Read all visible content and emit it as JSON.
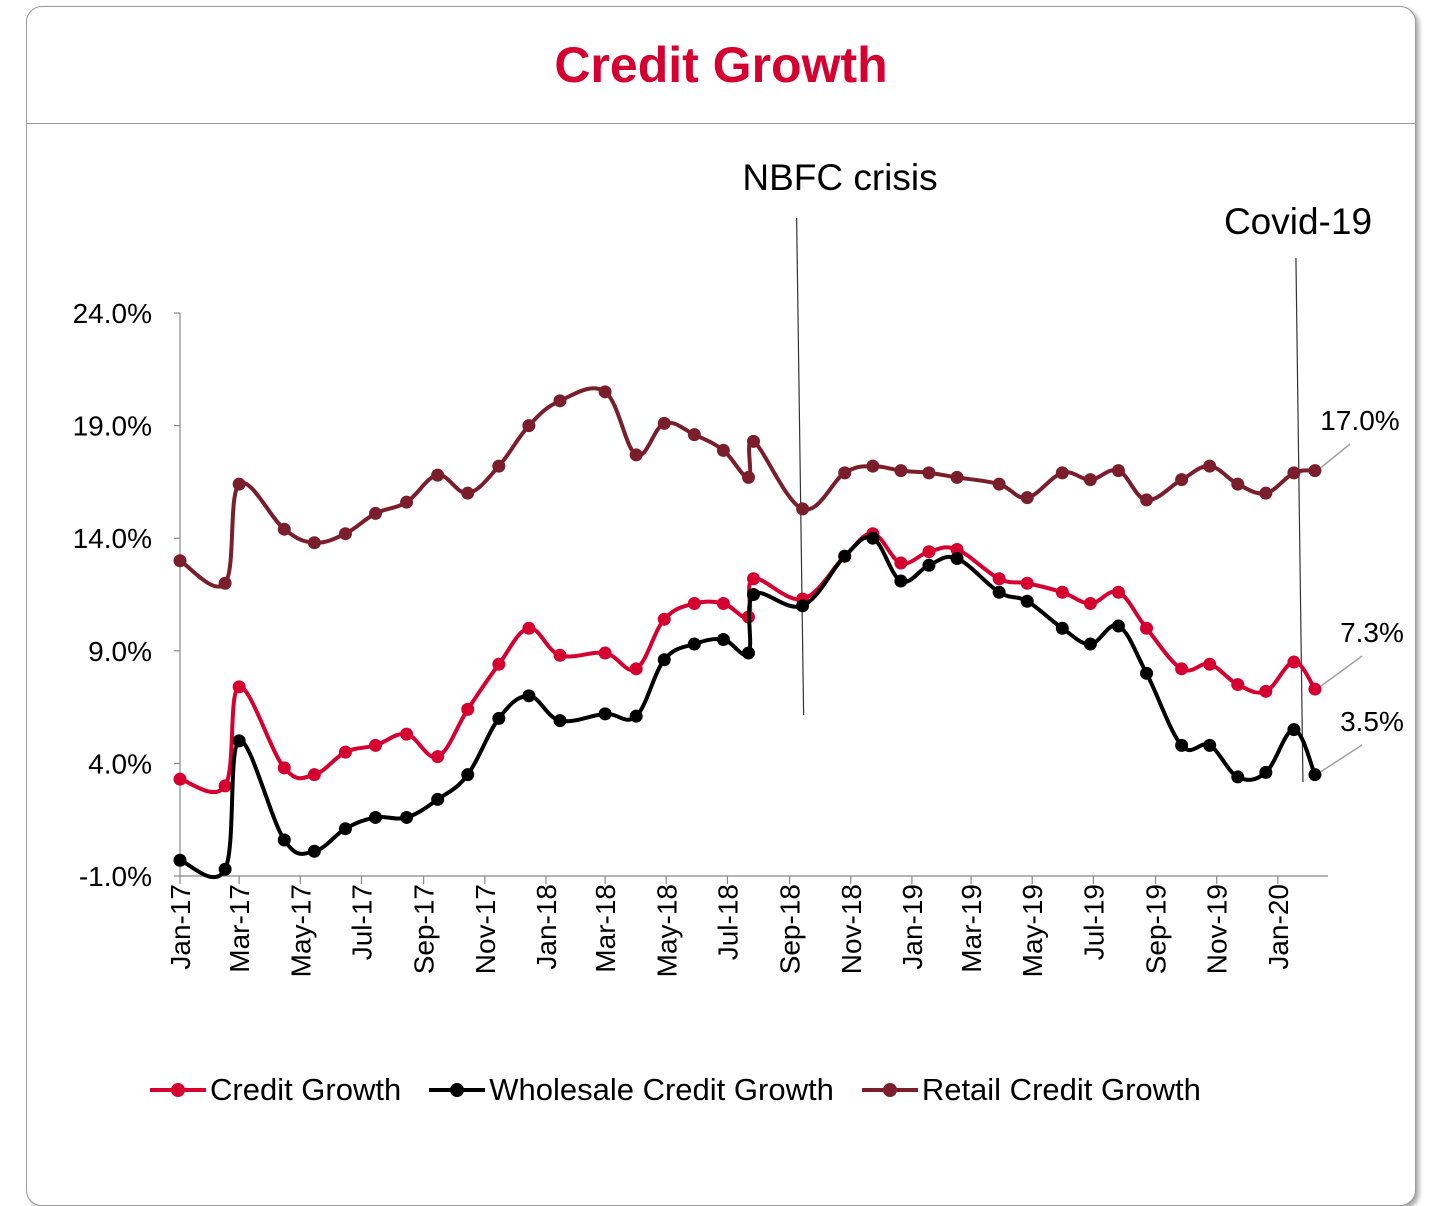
{
  "header": {
    "title": "Credit Growth"
  },
  "chart_data": {
    "type": "line",
    "title": "Credit Growth",
    "xlabel": "",
    "ylabel": "",
    "ylim": [
      -1.0,
      24.0
    ],
    "y_ticks": [
      "24.0%",
      "19.0%",
      "14.0%",
      "9.0%",
      "4.0%",
      "-1.0%"
    ],
    "y_tick_values": [
      24,
      19,
      14,
      9,
      4,
      -1
    ],
    "x_tick_labels": [
      "Jan-17",
      "Mar-17",
      "May-17",
      "Jul-17",
      "Sep-17",
      "Nov-17",
      "Jan-18",
      "Mar-18",
      "May-18",
      "Jul-18",
      "Sep-18",
      "Nov-18",
      "Jan-19",
      "Mar-19",
      "May-19",
      "Jul-19",
      "Sep-19",
      "Nov-19",
      "Jan-20"
    ],
    "x_range": [
      "2017-01-01",
      "2020-02-20"
    ],
    "grid": false,
    "legend_position": "bottom",
    "series": [
      {
        "name": "Credit Growth",
        "color": "#d5002f",
        "points": [
          [
            "2017-01-01",
            3.3
          ],
          [
            "2017-02-15",
            3.0
          ],
          [
            "2017-03-01",
            7.4
          ],
          [
            "2017-04-15",
            3.8
          ],
          [
            "2017-05-15",
            3.5
          ],
          [
            "2017-06-15",
            4.5
          ],
          [
            "2017-07-15",
            4.8
          ],
          [
            "2017-08-15",
            5.3
          ],
          [
            "2017-09-15",
            4.3
          ],
          [
            "2017-10-15",
            6.4
          ],
          [
            "2017-11-15",
            8.4
          ],
          [
            "2017-12-15",
            10.0
          ],
          [
            "2018-01-15",
            8.8
          ],
          [
            "2018-03-01",
            8.9
          ],
          [
            "2018-04-01",
            8.2
          ],
          [
            "2018-04-29",
            10.4
          ],
          [
            "2018-05-29",
            11.1
          ],
          [
            "2018-06-27",
            11.1
          ],
          [
            "2018-07-22",
            10.5
          ],
          [
            "2018-07-27",
            12.2
          ],
          [
            "2018-09-14",
            11.3
          ],
          [
            "2018-10-26",
            13.2
          ],
          [
            "2018-11-23",
            14.2
          ],
          [
            "2018-12-21",
            12.9
          ],
          [
            "2019-01-18",
            13.4
          ],
          [
            "2019-02-15",
            13.5
          ],
          [
            "2019-03-29",
            12.2
          ],
          [
            "2019-04-26",
            12.0
          ],
          [
            "2019-05-31",
            11.6
          ],
          [
            "2019-06-28",
            11.1
          ],
          [
            "2019-07-26",
            11.6
          ],
          [
            "2019-08-23",
            10.0
          ],
          [
            "2019-09-27",
            8.2
          ],
          [
            "2019-10-25",
            8.4
          ],
          [
            "2019-11-22",
            7.5
          ],
          [
            "2019-12-20",
            7.2
          ],
          [
            "2020-01-17",
            8.5
          ],
          [
            "2020-02-07",
            7.3
          ]
        ],
        "end_label": "7.3%"
      },
      {
        "name": "Wholesale Credit Growth",
        "color": "#000000",
        "points": [
          [
            "2017-01-01",
            -0.3
          ],
          [
            "2017-02-15",
            -0.7
          ],
          [
            "2017-03-01",
            5.0
          ],
          [
            "2017-04-15",
            0.6
          ],
          [
            "2017-05-15",
            0.1
          ],
          [
            "2017-06-15",
            1.1
          ],
          [
            "2017-07-15",
            1.6
          ],
          [
            "2017-08-15",
            1.6
          ],
          [
            "2017-09-15",
            2.4
          ],
          [
            "2017-10-15",
            3.5
          ],
          [
            "2017-11-15",
            6.0
          ],
          [
            "2017-12-15",
            7.0
          ],
          [
            "2018-01-15",
            5.9
          ],
          [
            "2018-03-01",
            6.2
          ],
          [
            "2018-04-01",
            6.1
          ],
          [
            "2018-04-29",
            8.6
          ],
          [
            "2018-05-29",
            9.3
          ],
          [
            "2018-06-27",
            9.5
          ],
          [
            "2018-07-22",
            8.9
          ],
          [
            "2018-07-27",
            11.5
          ],
          [
            "2018-09-14",
            11.0
          ],
          [
            "2018-10-26",
            13.2
          ],
          [
            "2018-11-23",
            14.0
          ],
          [
            "2018-12-21",
            12.1
          ],
          [
            "2019-01-18",
            12.8
          ],
          [
            "2019-02-15",
            13.1
          ],
          [
            "2019-03-29",
            11.6
          ],
          [
            "2019-04-26",
            11.2
          ],
          [
            "2019-05-31",
            10.0
          ],
          [
            "2019-06-28",
            9.3
          ],
          [
            "2019-07-26",
            10.1
          ],
          [
            "2019-08-23",
            8.0
          ],
          [
            "2019-09-27",
            4.8
          ],
          [
            "2019-10-25",
            4.8
          ],
          [
            "2019-11-22",
            3.4
          ],
          [
            "2019-12-20",
            3.6
          ],
          [
            "2020-01-17",
            5.5
          ],
          [
            "2020-02-07",
            3.5
          ]
        ],
        "end_label": "3.5%"
      },
      {
        "name": "Retail Credit Growth",
        "color": "#7b1e2b",
        "points": [
          [
            "2017-01-01",
            13.0
          ],
          [
            "2017-02-15",
            12.0
          ],
          [
            "2017-03-01",
            16.4
          ],
          [
            "2017-04-15",
            14.4
          ],
          [
            "2017-05-15",
            13.8
          ],
          [
            "2017-06-15",
            14.2
          ],
          [
            "2017-07-15",
            15.1
          ],
          [
            "2017-08-15",
            15.6
          ],
          [
            "2017-09-15",
            16.8
          ],
          [
            "2017-10-15",
            16.0
          ],
          [
            "2017-11-15",
            17.2
          ],
          [
            "2017-12-15",
            19.0
          ],
          [
            "2018-01-15",
            20.1
          ],
          [
            "2018-03-01",
            20.5
          ],
          [
            "2018-04-01",
            17.7
          ],
          [
            "2018-04-29",
            19.1
          ],
          [
            "2018-05-29",
            18.6
          ],
          [
            "2018-06-27",
            17.9
          ],
          [
            "2018-07-22",
            16.7
          ],
          [
            "2018-07-27",
            18.3
          ],
          [
            "2018-09-14",
            15.3
          ],
          [
            "2018-10-26",
            16.9
          ],
          [
            "2018-11-23",
            17.2
          ],
          [
            "2018-12-21",
            17.0
          ],
          [
            "2019-01-18",
            16.9
          ],
          [
            "2019-02-15",
            16.7
          ],
          [
            "2019-03-29",
            16.4
          ],
          [
            "2019-04-26",
            15.8
          ],
          [
            "2019-05-31",
            16.9
          ],
          [
            "2019-06-28",
            16.6
          ],
          [
            "2019-07-26",
            17.0
          ],
          [
            "2019-08-23",
            15.7
          ],
          [
            "2019-09-27",
            16.6
          ],
          [
            "2019-10-25",
            17.2
          ],
          [
            "2019-11-22",
            16.4
          ],
          [
            "2019-12-20",
            16.0
          ],
          [
            "2020-01-17",
            16.9
          ],
          [
            "2020-02-07",
            17.0
          ]
        ],
        "end_label": "17.0%"
      }
    ],
    "annotations": [
      {
        "text": "NBFC crisis",
        "date": "2018-09-14"
      },
      {
        "text": "Covid-19",
        "date": "2020-01-25"
      }
    ]
  }
}
